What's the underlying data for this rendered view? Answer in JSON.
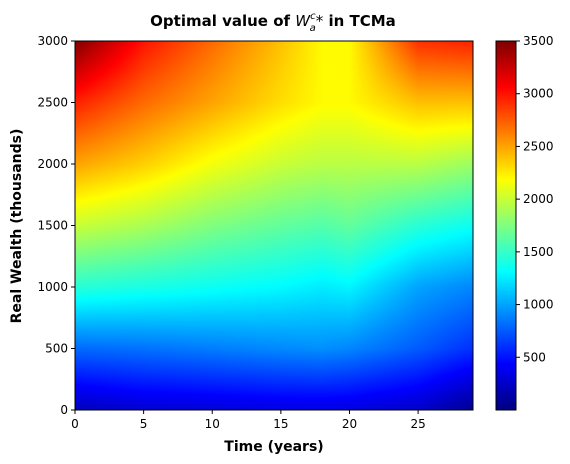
{
  "chart_data": {
    "type": "heatmap",
    "title_prefix": "Optimal value of ",
    "title_symbol": "W",
    "title_sup": "c",
    "title_sub": "a",
    "title_star": "*",
    "title_suffix": " in TCMa",
    "xlabel": "Time (years)",
    "ylabel": "Real Wealth (thousands)",
    "xlim": [
      0,
      29
    ],
    "ylim": [
      0,
      3000
    ],
    "xticks": [
      0,
      5,
      10,
      15,
      20,
      25
    ],
    "yticks": [
      0,
      500,
      1000,
      1500,
      2000,
      2500,
      3000
    ],
    "colormap": "jet",
    "colorbar": {
      "range": [
        0,
        3500
      ],
      "ticks": [
        500,
        1000,
        1500,
        2000,
        2500,
        3000,
        3500
      ]
    },
    "time_samples": [
      0,
      5,
      10,
      15,
      18,
      20,
      25,
      29
    ],
    "wealth_samples": [
      0,
      500,
      1000,
      1500,
      2000,
      2500,
      3000
    ],
    "values": [
      [
        200,
        280,
        300,
        330,
        330,
        320,
        250,
        60
      ],
      [
        800,
        830,
        870,
        910,
        930,
        900,
        750,
        600
      ],
      [
        1450,
        1400,
        1350,
        1300,
        1250,
        1280,
        1000,
        900
      ],
      [
        2000,
        1900,
        1750,
        1650,
        1600,
        1650,
        1450,
        1350
      ],
      [
        2500,
        2350,
        2150,
        2000,
        1950,
        1950,
        1950,
        1850
      ],
      [
        2950,
        2700,
        2500,
        2300,
        2200,
        2200,
        2400,
        2400
      ],
      [
        3500,
        3000,
        2700,
        2400,
        2200,
        2200,
        2900,
        2950
      ]
    ]
  }
}
